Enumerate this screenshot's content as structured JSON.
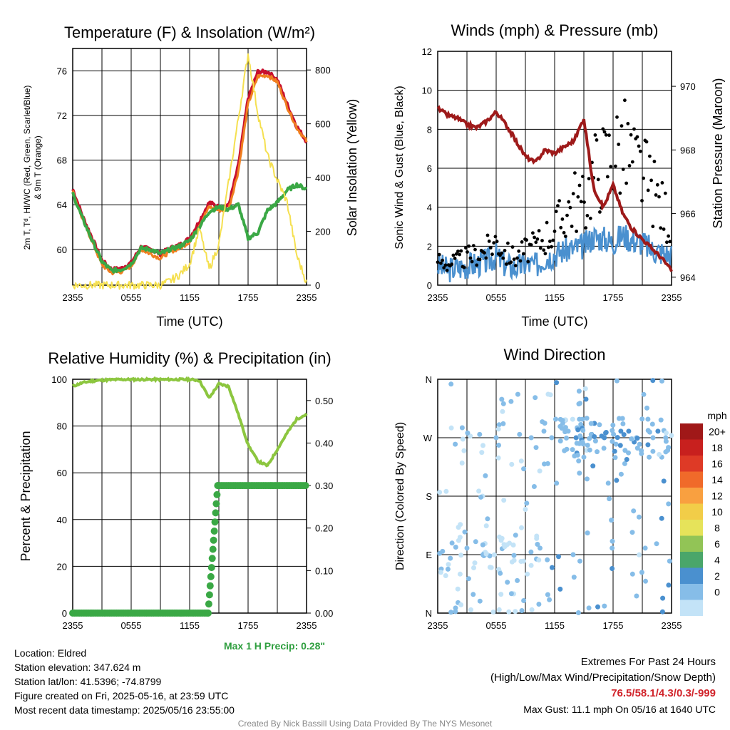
{
  "colors": {
    "temp": "#c8102e",
    "dewpoint": "#3aa845",
    "heat_index": "#c8102e",
    "temp9m": "#f07f20",
    "insolation": "#f5e050",
    "rh": "#8cc63f",
    "precip": "#3aa845",
    "wind": "#4a90cf",
    "gust": "#000000",
    "pressure": "#9e1a1a",
    "max_precip_label": "#2e9e3e",
    "extremes_label": "#d1232a",
    "credit": "#888888"
  },
  "panels": {
    "temp": {
      "title": "Temperature (F) & Insolation (W/m²)",
      "ylabel_left_line1": "2m T, Tᵈ, HI/WC (Red, Green, Scarlet/Blue)",
      "ylabel_left_line2": "& 9m T (Orange)",
      "ylabel_right": "Solar Insolation (Yellow)",
      "xlabel": "Time (UTC)"
    },
    "wind": {
      "title": "Winds (mph) & Pressure (mb)",
      "ylabel_left": "Sonic Wind & Gust (Blue, Black)",
      "ylabel_right": "Station Pressure (Maroon)",
      "xlabel": "Time (UTC)"
    },
    "rh": {
      "title": "Relative Humidity (%) & Precipitation (in)",
      "ylabel_left": "Percent & Precipitation",
      "max_precip": "Max 1 H Precip: 0.28\""
    },
    "wdir": {
      "title": "Wind Direction",
      "ylabel_left": "Direction (Colored By Speed)"
    }
  },
  "chart_data": [
    {
      "type": "line",
      "title": "Temperature (F) & Insolation (W/m²)",
      "xlabel": "Time (UTC)",
      "ylabel": "2m T, Td, HI/WC (Red, Green, Scarlet/Blue) & 9m T (Orange)",
      "y2label": "Solar Insolation (Yellow)",
      "x_ticks": [
        "2355",
        "0555",
        "1155",
        "1755",
        "2355"
      ],
      "y_ticks": [
        60,
        64,
        68,
        72,
        76
      ],
      "y2_ticks": [
        0,
        200,
        400,
        600,
        800
      ],
      "ylim": [
        56.8,
        78
      ],
      "y2lim": [
        0,
        880
      ],
      "x": [
        0,
        1,
        2,
        3,
        4,
        5,
        6,
        7,
        8,
        9,
        10,
        11,
        12,
        13,
        14,
        15,
        16,
        17,
        18,
        19,
        20,
        21,
        22,
        23,
        24
      ],
      "series": [
        {
          "name": "2m T",
          "axis": "left",
          "values": [
            65.4,
            63.0,
            61.0,
            59.0,
            58.2,
            58.3,
            58.8,
            60.2,
            60.0,
            59.6,
            60.1,
            60.4,
            61.0,
            62.5,
            64.2,
            63.8,
            63.9,
            67.5,
            73.5,
            75.9,
            75.9,
            75.2,
            73.0,
            71.0,
            69.7
          ]
        },
        {
          "name": "9m T",
          "axis": "left",
          "values": [
            65.2,
            62.7,
            60.7,
            58.6,
            57.9,
            58.0,
            58.5,
            60.0,
            59.6,
            59.2,
            59.8,
            60.1,
            60.7,
            62.2,
            63.8,
            63.5,
            63.6,
            67.0,
            73.0,
            75.5,
            75.6,
            75.0,
            72.8,
            70.9,
            69.7
          ]
        },
        {
          "name": "Td",
          "axis": "left",
          "values": [
            65.0,
            62.8,
            60.8,
            58.9,
            58.1,
            58.2,
            58.7,
            60.1,
            60.0,
            59.6,
            60.0,
            60.3,
            60.8,
            62.0,
            63.4,
            63.8,
            63.6,
            64.0,
            61.0,
            61.5,
            63.5,
            64.2,
            65.3,
            65.8,
            65.4
          ]
        },
        {
          "name": "Solar Insolation",
          "axis": "right",
          "values": [
            0,
            0,
            0,
            0,
            0,
            0,
            0,
            0,
            0,
            0,
            15,
            40,
            80,
            210,
            60,
            150,
            380,
            620,
            860,
            640,
            480,
            390,
            310,
            110,
            10
          ]
        }
      ]
    },
    {
      "type": "line",
      "title": "Winds (mph) & Pressure (mb)",
      "xlabel": "Time (UTC)",
      "ylabel": "Sonic Wind & Gust (Blue, Black)",
      "y2label": "Station Pressure (Maroon)",
      "x_ticks": [
        "2355",
        "0555",
        "1155",
        "1755",
        "2355"
      ],
      "y_ticks": [
        0,
        2,
        4,
        6,
        8,
        10,
        12
      ],
      "y2_ticks": [
        964,
        966,
        968,
        970
      ],
      "ylim": [
        0,
        12
      ],
      "y2lim": [
        963.75,
        971.1
      ],
      "x": [
        0,
        1,
        2,
        3,
        4,
        5,
        6,
        7,
        8,
        9,
        10,
        11,
        12,
        13,
        14,
        15,
        16,
        17,
        18,
        19,
        20,
        21,
        22,
        23,
        24
      ],
      "series": [
        {
          "name": "Sonic Wind",
          "axis": "left",
          "values": [
            1.0,
            0.8,
            0.9,
            1.0,
            1.1,
            1.2,
            1.5,
            1.0,
            0.9,
            1.1,
            1.0,
            1.4,
            1.6,
            1.8,
            1.9,
            2.0,
            2.5,
            2.4,
            2.2,
            2.6,
            2.3,
            2.2,
            1.8,
            1.7,
            1.5
          ]
        },
        {
          "name": "Gust",
          "axis": "left",
          "values": [
            1.5,
            1.2,
            1.4,
            1.6,
            1.8,
            2.0,
            2.6,
            1.8,
            1.6,
            2.0,
            2.2,
            2.8,
            3.2,
            4.0,
            5.0,
            4.5,
            6.5,
            7.0,
            7.5,
            8.0,
            7.0,
            6.5,
            5.5,
            4.5,
            3.5
          ]
        },
        {
          "name": "Station Pressure",
          "axis": "right",
          "values": [
            969.3,
            969.1,
            969.0,
            968.8,
            968.7,
            968.9,
            969.2,
            968.8,
            968.3,
            967.8,
            967.6,
            968.0,
            967.9,
            968.1,
            968.3,
            969.0,
            966.8,
            966.2,
            966.9,
            966.0,
            965.5,
            965.2,
            964.9,
            964.6,
            964.2
          ]
        }
      ]
    },
    {
      "type": "line",
      "title": "Relative Humidity (%) & Precipitation (in)",
      "ylabel": "Percent & Precipitation",
      "x_ticks": [
        "2355",
        "0555",
        "1155",
        "1755",
        "2355"
      ],
      "y_ticks": [
        0,
        20,
        40,
        60,
        80,
        100
      ],
      "y2_ticks": [
        "0.00",
        "0.10",
        "0.20",
        "0.30",
        "0.40",
        "0.50"
      ],
      "ylim": [
        0,
        100
      ],
      "y2lim": [
        0,
        0.55
      ],
      "x": [
        0,
        1,
        2,
        3,
        4,
        5,
        6,
        7,
        8,
        9,
        10,
        11,
        12,
        13,
        14,
        15,
        16,
        17,
        18,
        19,
        20,
        21,
        22,
        23,
        24
      ],
      "series": [
        {
          "name": "Relative Humidity",
          "axis": "left",
          "values": [
            97,
            98.5,
            99.3,
            99.6,
            99.8,
            99.9,
            99.9,
            99.9,
            99.9,
            99.9,
            99.9,
            99.9,
            99.9,
            99.5,
            92,
            98,
            97,
            85,
            72,
            65,
            63,
            70,
            77,
            83,
            85
          ]
        },
        {
          "name": "Precipitation",
          "axis": "right",
          "values": [
            0,
            0,
            0,
            0,
            0,
            0,
            0,
            0,
            0,
            0,
            0,
            0,
            0,
            0,
            0,
            0.3,
            0.3,
            0.3,
            0.3,
            0.3,
            0.3,
            0.3,
            0.3,
            0.3,
            0.3
          ]
        }
      ]
    },
    {
      "type": "scatter",
      "title": "Wind Direction",
      "ylabel": "Direction (Colored By Speed)",
      "x_ticks": [
        "2355",
        "0555",
        "1155",
        "1755",
        "2355"
      ],
      "y_ticks": [
        "N",
        "E",
        "S",
        "W",
        "N"
      ],
      "ylim": [
        0,
        360
      ],
      "legend_title": "mph",
      "legend_labels": [
        "20+",
        "18",
        "16",
        "14",
        "12",
        "10",
        "8",
        "6",
        "4",
        "2",
        "0"
      ],
      "legend_colors": [
        "#a01818",
        "#c8201e",
        "#de3a26",
        "#f06a2a",
        "#f9a040",
        "#f2cd48",
        "#e6e35a",
        "#92c456",
        "#4aa66a",
        "#4a90cf",
        "#86bde8",
        "#c3e3f7"
      ],
      "points_hour": [
        0.2,
        0.5,
        1.1,
        1.4,
        1.8,
        2.3,
        2.7,
        3.0,
        3.4,
        3.9,
        4.3,
        4.6,
        5.1,
        5.5,
        6.0,
        6.3,
        6.6,
        7.1,
        7.7,
        8.0,
        8.4,
        8.8,
        9.2,
        9.6,
        10.1,
        10.5,
        10.9,
        11.3,
        11.7,
        12.2,
        12.6,
        13.0,
        13.4,
        13.9,
        14.2,
        14.6,
        15.0,
        15.3,
        15.8,
        16.2,
        16.6,
        17.1,
        17.5,
        17.9,
        18.3,
        18.8,
        19.2,
        19.6,
        20.0,
        20.4,
        20.9,
        21.3,
        21.7,
        22.1,
        22.6,
        23.0,
        23.4,
        23.8
      ],
      "points_dir": [
        92,
        95,
        75,
        285,
        260,
        60,
        250,
        100,
        5,
        110,
        275,
        180,
        90,
        70,
        270,
        290,
        115,
        105,
        30,
        120,
        275,
        80,
        60,
        270,
        255,
        100,
        280,
        230,
        270,
        200,
        265,
        250,
        280,
        90,
        270,
        80,
        240,
        300,
        275,
        265,
        290,
        270,
        200,
        100,
        260,
        280,
        230,
        280,
        60,
        270,
        250,
        100,
        240,
        270,
        280,
        240,
        270,
        80
      ],
      "points_speed": [
        1.5,
        1.0,
        0.8,
        0.6,
        1.0,
        0.5,
        0.8,
        1.0,
        0.4,
        1.2,
        1.6,
        0.8,
        0.7,
        0.5,
        1.5,
        1.2,
        0.7,
        0.8,
        0.5,
        1.0,
        1.8,
        0.8,
        0.6,
        2.2,
        1.5,
        1.0,
        2.0,
        1.5,
        2.5,
        1.0,
        2.8,
        1.8,
        2.5,
        1.5,
        3.0,
        1.0,
        2.2,
        2.4,
        3.2,
        2.6,
        2.8,
        3.0,
        1.5,
        1.0,
        2.8,
        3.5,
        2.2,
        3.0,
        1.5,
        2.6,
        2.0,
        1.0,
        2.5,
        2.8,
        3.0,
        2.2,
        2.6,
        1.5
      ]
    }
  ],
  "info": {
    "location": "Location: Eldred",
    "elevation": "Station elevation: 347.624 m",
    "latlon": "Station lat/lon: 41.5396; -74.8799",
    "created": "Figure created on Fri, 2025-05-16, at 23:59 UTC",
    "recent": "Most recent data timestamp: 2025/05/16 23:55:00"
  },
  "extremes": {
    "header": "Extremes For Past 24 Hours",
    "subheader": "(High/Low/Max Wind/Precipitation/Snow Depth)",
    "values": "76.5/58.1/4.3/0.3/-999",
    "max_gust": "Max Gust: 11.1 mph On 05/16 at 1640 UTC"
  },
  "credit": "Created By Nick Bassill Using Data Provided By The NYS Mesonet"
}
